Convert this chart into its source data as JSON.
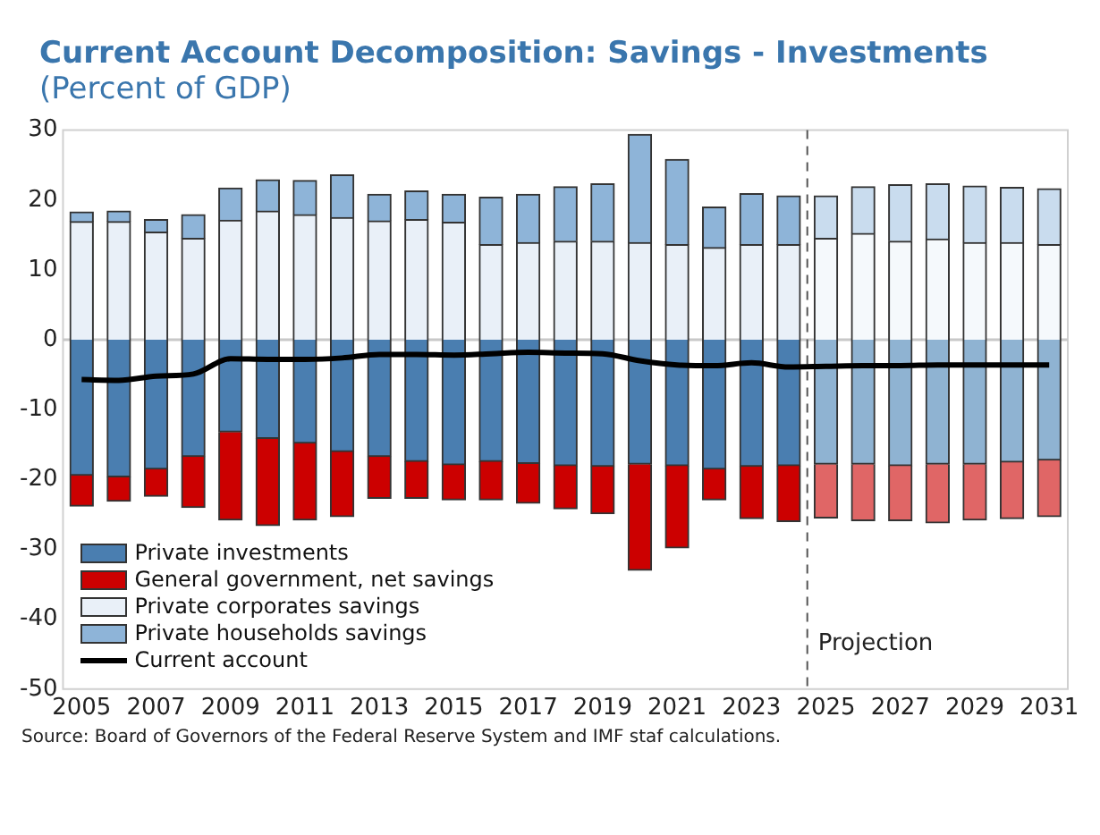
{
  "chart_data": {
    "type": "bar",
    "title": "Current Account Decomposition: Savings - Investments",
    "subtitle": "(Percent of GDP)",
    "x": [
      2005,
      2006,
      2007,
      2008,
      2009,
      2010,
      2011,
      2012,
      2013,
      2014,
      2015,
      2016,
      2017,
      2018,
      2019,
      2020,
      2021,
      2022,
      2023,
      2024,
      2025,
      2026,
      2027,
      2028,
      2029,
      2030,
      2031
    ],
    "xlim": [
      2004.5,
      2031.5
    ],
    "xticks": [
      2005,
      2007,
      2009,
      2011,
      2013,
      2015,
      2017,
      2019,
      2021,
      2023,
      2025,
      2027,
      2029,
      2031
    ],
    "ylim": [
      -50,
      30
    ],
    "yticks": [
      -50,
      -40,
      -30,
      -20,
      -10,
      0,
      10,
      20,
      30
    ],
    "stacked": true,
    "grid": false,
    "legend": "bottom left",
    "series": [
      {
        "name": "Private investments",
        "colors": [
          "#4a7eb0",
          "#4a7eb0",
          "#4a7eb0",
          "#4a7eb0",
          "#4a7eb0",
          "#4a7eb0",
          "#4a7eb0",
          "#4a7eb0",
          "#4a7eb0",
          "#4a7eb0",
          "#4a7eb0",
          "#4a7eb0",
          "#4a7eb0",
          "#4a7eb0",
          "#4a7eb0",
          "#4a7eb0",
          "#4a7eb0",
          "#4a7eb0",
          "#4a7eb0",
          "#4a7eb0",
          "#8fb3d2",
          "#8fb3d2",
          "#8fb3d2",
          "#8fb3d2",
          "#8fb3d2",
          "#8fb3d2",
          "#8fb3d2"
        ],
        "values": [
          -19.4,
          -19.6,
          -18.5,
          -16.7,
          -13.2,
          -14.1,
          -14.8,
          -16.0,
          -16.7,
          -17.4,
          -17.9,
          -17.4,
          -17.7,
          -18.0,
          -18.1,
          -17.8,
          -18.0,
          -18.5,
          -18.1,
          -18.0,
          -17.8,
          -17.8,
          -18.0,
          -17.8,
          -17.8,
          -17.5,
          -17.2
        ]
      },
      {
        "name": "General government, net savings",
        "colors": [
          "#cc0000",
          "#cc0000",
          "#cc0000",
          "#cc0000",
          "#cc0000",
          "#cc0000",
          "#cc0000",
          "#cc0000",
          "#cc0000",
          "#cc0000",
          "#cc0000",
          "#cc0000",
          "#cc0000",
          "#cc0000",
          "#cc0000",
          "#cc0000",
          "#cc0000",
          "#cc0000",
          "#cc0000",
          "#cc0000",
          "#e06666",
          "#e06666",
          "#e06666",
          "#e06666",
          "#e06666",
          "#e06666",
          "#e06666"
        ],
        "values": [
          -4.4,
          -3.5,
          -3.9,
          -7.3,
          -12.6,
          -12.5,
          -11.0,
          -9.3,
          -6.0,
          -5.3,
          -5.0,
          -5.5,
          -5.7,
          -6.2,
          -6.8,
          -15.2,
          -11.8,
          -4.4,
          -7.5,
          -8.0,
          -7.7,
          -8.1,
          -7.9,
          -8.4,
          -8.0,
          -8.1,
          -8.1
        ]
      },
      {
        "name": "Private corporates savings",
        "colors": [
          "#e9f0f8",
          "#e9f0f8",
          "#e9f0f8",
          "#e9f0f8",
          "#e9f0f8",
          "#e9f0f8",
          "#e9f0f8",
          "#e9f0f8",
          "#e9f0f8",
          "#e9f0f8",
          "#e9f0f8",
          "#e9f0f8",
          "#e9f0f8",
          "#e9f0f8",
          "#e9f0f8",
          "#e9f0f8",
          "#e9f0f8",
          "#e9f0f8",
          "#e9f0f8",
          "#e9f0f8",
          "#f5f9fc",
          "#f5f9fc",
          "#f5f9fc",
          "#f5f9fc",
          "#f5f9fc",
          "#f5f9fc",
          "#f5f9fc"
        ],
        "values": [
          16.9,
          16.9,
          15.4,
          14.5,
          17.1,
          18.4,
          17.9,
          17.5,
          17.0,
          17.2,
          16.8,
          13.6,
          13.9,
          14.1,
          14.1,
          13.9,
          13.6,
          13.2,
          13.6,
          13.6,
          14.5,
          15.2,
          14.1,
          14.4,
          13.9,
          13.9,
          13.6
        ]
      },
      {
        "name": "Private households savings",
        "colors": [
          "#8eb4d8",
          "#8eb4d8",
          "#8eb4d8",
          "#8eb4d8",
          "#8eb4d8",
          "#8eb4d8",
          "#8eb4d8",
          "#8eb4d8",
          "#8eb4d8",
          "#8eb4d8",
          "#8eb4d8",
          "#8eb4d8",
          "#8eb4d8",
          "#8eb4d8",
          "#8eb4d8",
          "#8eb4d8",
          "#8eb4d8",
          "#8eb4d8",
          "#8eb4d8",
          "#8eb4d8",
          "#c9dcee",
          "#c9dcee",
          "#c9dcee",
          "#c9dcee",
          "#c9dcee",
          "#c9dcee",
          "#c9dcee"
        ],
        "values": [
          1.4,
          1.5,
          1.8,
          3.4,
          4.6,
          4.5,
          4.9,
          6.1,
          3.8,
          4.1,
          4.0,
          6.8,
          6.9,
          7.8,
          8.2,
          15.5,
          12.2,
          5.8,
          7.3,
          7.0,
          6.1,
          6.7,
          8.1,
          7.9,
          8.1,
          7.9,
          8.0
        ]
      },
      {
        "name": "Current account",
        "type": "line",
        "color": "#000000",
        "values": [
          -5.7,
          -5.8,
          -5.2,
          -4.9,
          -2.7,
          -2.8,
          -2.8,
          -2.6,
          -2.1,
          -2.1,
          -2.2,
          -2.0,
          -1.8,
          -1.9,
          -2.0,
          -3.0,
          -3.6,
          -3.7,
          -3.3,
          -3.9,
          -3.8,
          -3.7,
          -3.7,
          -3.6,
          -3.6,
          -3.6,
          -3.6
        ]
      }
    ],
    "ref_lines": [
      {
        "axis": "y",
        "value": 0,
        "color": "#c8c8c8",
        "line_style": "solid"
      },
      {
        "axis": "x",
        "value": 2024.5,
        "label": "Projection",
        "color": "#555555",
        "line_style": "dashed"
      }
    ],
    "annotations": [
      "Source:  Board of Governors of the Federal Reserve System and IMF staf calculations."
    ]
  }
}
